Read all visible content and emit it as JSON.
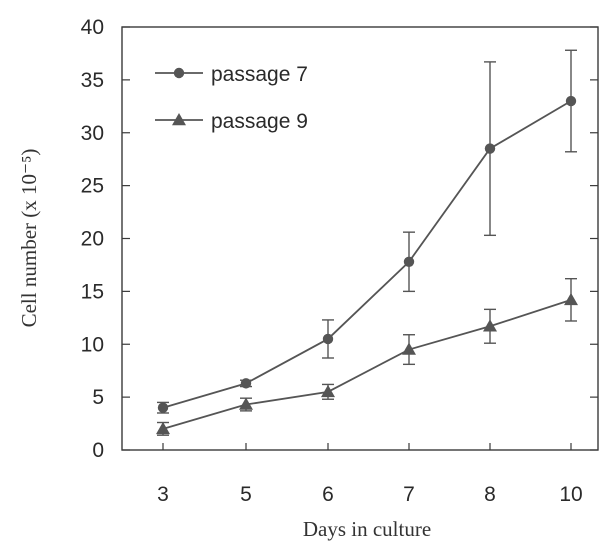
{
  "chart_data": {
    "type": "line",
    "xlabel": "Days in culture",
    "ylabel": "Cell number (x 10⁻⁵)",
    "categories": [
      "3",
      "5",
      "6",
      "7",
      "8",
      "10"
    ],
    "ylim": [
      0,
      40
    ],
    "yticks": [
      0,
      5,
      10,
      15,
      20,
      25,
      30,
      35,
      40
    ],
    "grid": false,
    "legend": "top-left",
    "series": [
      {
        "name": "passage 7",
        "marker": "circle",
        "color": "#555555",
        "values": [
          4.0,
          6.3,
          10.5,
          17.8,
          28.5,
          33.0
        ],
        "errors": [
          0.5,
          0.3,
          1.8,
          2.8,
          8.2,
          4.8
        ]
      },
      {
        "name": "passage 9",
        "marker": "triangle",
        "color": "#555555",
        "values": [
          2.0,
          4.3,
          5.5,
          9.5,
          11.7,
          14.2
        ],
        "errors": [
          0.6,
          0.6,
          0.7,
          1.4,
          1.6,
          2.0
        ]
      }
    ]
  }
}
